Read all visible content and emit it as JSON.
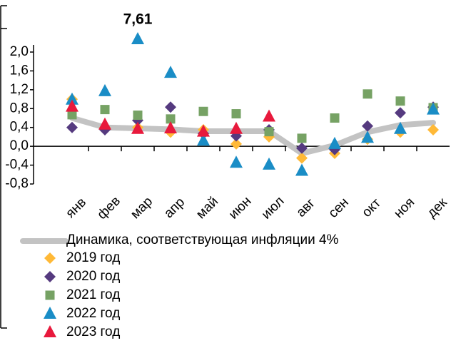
{
  "chart_data": {
    "type": "scatter",
    "categories": [
      "янв",
      "фев",
      "мар",
      "апр",
      "май",
      "июн",
      "июл",
      "авг",
      "сен",
      "окт",
      "ноя",
      "дек"
    ],
    "ylim": [
      -0.8,
      2.0
    ],
    "yticks": [
      {
        "value": -0.8,
        "label": "-0,8"
      },
      {
        "value": -0.4,
        "label": "-0,4"
      },
      {
        "value": 0,
        "label": "0,0"
      },
      {
        "value": 0.4,
        "label": "0,4"
      },
      {
        "value": 0.8,
        "label": "0,8"
      },
      {
        "value": 1.2,
        "label": "1,2"
      },
      {
        "value": 1.6,
        "label": "1,6"
      },
      {
        "value": 2.0,
        "label": "2,0"
      }
    ],
    "series": [
      {
        "name": "Динамика, соответствующая инфляции 4%",
        "style": "line",
        "color": "#c3c3c3",
        "values": [
          0.6,
          0.4,
          0.38,
          0.36,
          0.32,
          0.32,
          0.32,
          -0.15,
          0.02,
          0.3,
          0.45,
          0.5
        ]
      },
      {
        "name": "2019 год",
        "style": "diamond",
        "color": "#ffb937",
        "values": [
          1.0,
          0.4,
          0.4,
          0.3,
          0.35,
          0.05,
          0.2,
          -0.25,
          -0.15,
          0.15,
          0.3,
          0.35
        ]
      },
      {
        "name": "2020 год",
        "style": "diamond",
        "color": "#553a7f",
        "values": [
          0.4,
          0.35,
          0.55,
          0.83,
          0.27,
          0.22,
          0.35,
          -0.04,
          -0.07,
          0.43,
          0.71,
          0.83
        ]
      },
      {
        "name": "2021 год",
        "style": "square",
        "color": "#76a264",
        "values": [
          0.67,
          0.78,
          0.66,
          0.58,
          0.74,
          0.69,
          0.31,
          0.17,
          0.6,
          1.11,
          0.96,
          0.82
        ]
      },
      {
        "name": "2022 год",
        "style": "triangle",
        "color": "#1a8dc6",
        "values": [
          0.99,
          1.17,
          7.61,
          1.56,
          0.12,
          -0.35,
          -0.39,
          -0.52,
          0.05,
          0.18,
          0.37,
          0.78
        ],
        "value_labels": [
          null,
          null,
          "7,61",
          null,
          null,
          null,
          null,
          null,
          null,
          null,
          null,
          null
        ]
      },
      {
        "name": "2023 год",
        "style": "triangle",
        "color": "#e8193c",
        "values": [
          0.84,
          0.46,
          0.37,
          0.38,
          0.31,
          0.37,
          0.63,
          null,
          null,
          null,
          null,
          null
        ]
      }
    ]
  }
}
